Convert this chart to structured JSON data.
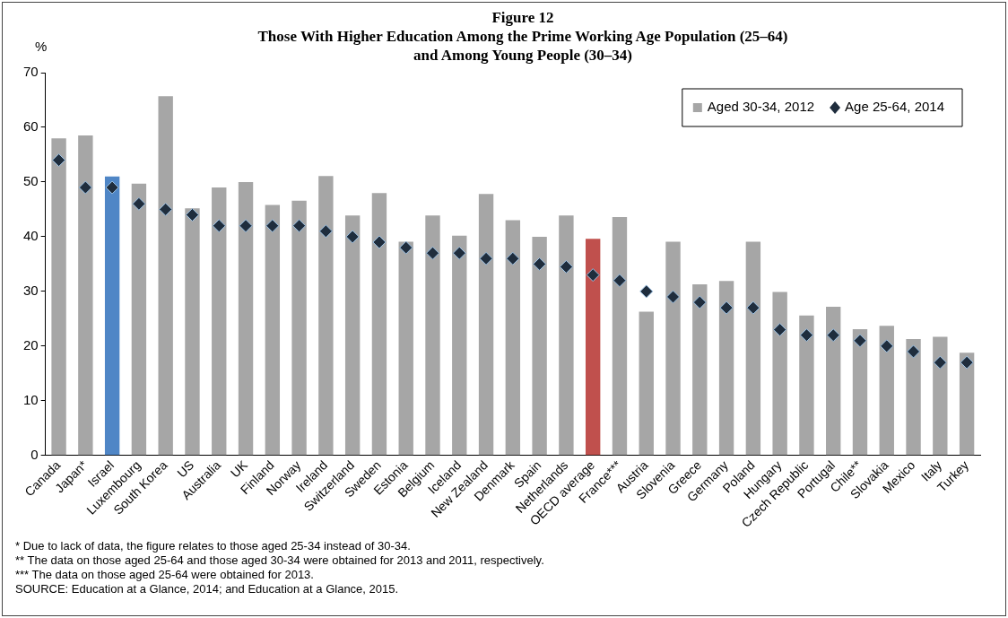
{
  "chart_data": {
    "type": "bar",
    "title": "Figure 12\nThose With Higher Education Among the Prime Working Age Population (25–64)\nand Among Young People (30–34)",
    "ylabel": "%",
    "categories": [
      "Canada",
      "Japan*",
      "Israel",
      "Luxembourg",
      "South Korea",
      "US",
      "Australia",
      "UK",
      "Finland",
      "Norway",
      "Ireland",
      "Switzerland",
      "Sweden",
      "Estonia",
      "Belgium",
      "Iceland",
      "New Zealand",
      "Denmark",
      "Spain",
      "Netherlands",
      "OECD average",
      "France***",
      "Austria",
      "Slovenia",
      "Greece",
      "Germany",
      "Poland",
      "Hungary",
      "Czech Republic",
      "Portugal",
      "Chile**",
      "Slovakia",
      "Mexico",
      "Italy",
      "Turkey"
    ],
    "series": [
      {
        "name": "Aged 30-34, 2012",
        "color": "#a6a6a6",
        "colors": [
          "#a6a6a6",
          "#a6a6a6",
          "#4f86c6",
          "#a6a6a6",
          "#a6a6a6",
          "#a6a6a6",
          "#a6a6a6",
          "#a6a6a6",
          "#a6a6a6",
          "#a6a6a6",
          "#a6a6a6",
          "#a6a6a6",
          "#a6a6a6",
          "#a6a6a6",
          "#a6a6a6",
          "#a6a6a6",
          "#a6a6a6",
          "#a6a6a6",
          "#a6a6a6",
          "#a6a6a6",
          "#c0504d",
          "#a6a6a6",
          "#a6a6a6",
          "#a6a6a6",
          "#a6a6a6",
          "#a6a6a6",
          "#a6a6a6",
          "#a6a6a6",
          "#a6a6a6",
          "#a6a6a6",
          "#a6a6a6",
          "#a6a6a6",
          "#a6a6a6",
          "#a6a6a6",
          "#a6a6a6"
        ],
        "values": [
          58,
          58.5,
          51,
          49.7,
          65.7,
          45.2,
          49,
          50,
          45.8,
          46.6,
          51.1,
          43.9,
          48,
          39.1,
          43.9,
          40.2,
          47.8,
          43,
          40,
          43.9,
          39.6,
          43.6,
          26.3,
          39.1,
          31.3,
          31.9,
          39.1,
          29.9,
          25.6,
          27.2,
          23.1,
          23.7,
          21.3,
          21.7,
          18.8
        ]
      },
      {
        "name": "Age 25-64, 2014",
        "type": "scatter",
        "marker": "diamond",
        "color": "#1f2d3d",
        "values": [
          54,
          49,
          49,
          46,
          45,
          44,
          42,
          42,
          42,
          42,
          41,
          40,
          39,
          38,
          37,
          37,
          36,
          36,
          35,
          34.5,
          33,
          32,
          30,
          29,
          28,
          27,
          27,
          23,
          22,
          22,
          21,
          20,
          19,
          17,
          17
        ]
      }
    ],
    "ylim": [
      0,
      70
    ],
    "yticks": [
      0,
      10,
      20,
      30,
      40,
      50,
      60,
      70
    ],
    "legend": "top right",
    "annotations": [
      "* Due to lack of data, the figure relates to those aged 25-34 instead of 30-34.",
      "** The data on those aged 25-64 and those aged 30-34 were obtained for 2013 and 2011, respectively.",
      "*** The data on those aged 25-64 were obtained for 2013.",
      "SOURCE: Education at a Glance, 2014; and Education at a Glance, 2015."
    ]
  }
}
